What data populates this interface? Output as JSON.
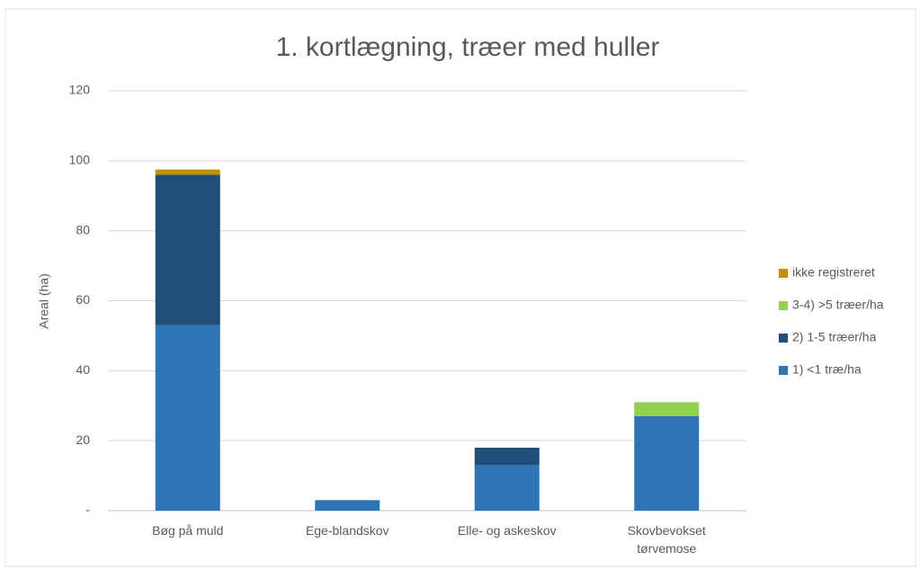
{
  "chart_data": {
    "type": "stacked-bar",
    "title": "1. kortlægning, træer med huller",
    "y_label": "Areal (ha)",
    "categories": [
      "Bøg på muld",
      "Ege-blandskov",
      "Elle- og askeskov",
      "Skovbevokset tørvemose"
    ],
    "series": [
      {
        "name": "1) <1 træ/ha",
        "color": "#2e75b6",
        "values": [
          53,
          3,
          13,
          27
        ]
      },
      {
        "name": "2) 1-5 træer/ha",
        "color": "#1f4e79",
        "values": [
          43,
          0,
          5,
          0
        ]
      },
      {
        "name": "3-4) >5 træer/ha",
        "color": "#92d050",
        "values": [
          0,
          0,
          0,
          4
        ]
      },
      {
        "name": "ikke registreret",
        "color": "#bf9000",
        "values": [
          1.5,
          0,
          0,
          0
        ]
      }
    ],
    "ylim": [
      0,
      120
    ],
    "yticks": [
      {
        "value": 0,
        "label": "-"
      },
      20,
      40,
      60,
      80,
      100,
      120
    ],
    "grid": true,
    "legend": "right"
  }
}
